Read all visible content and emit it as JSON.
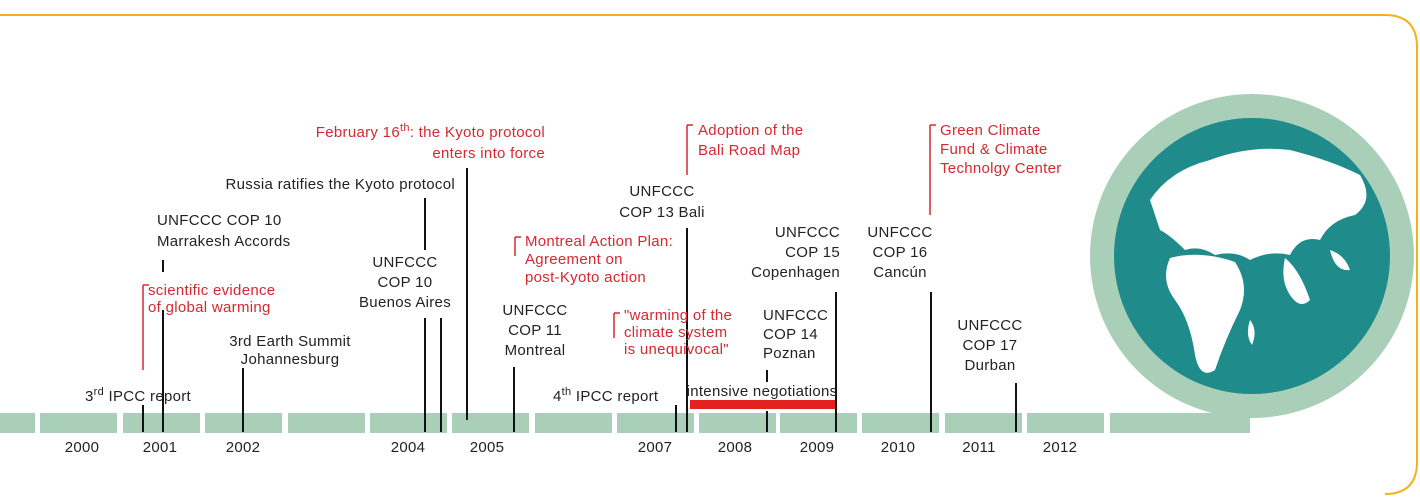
{
  "years": [
    "2000",
    "2001",
    "2002",
    "2004",
    "2005",
    "2007",
    "2008",
    "2009",
    "2010",
    "2011",
    "2012"
  ],
  "events": [
    {
      "lines": [
        [
          "3",
          "rd",
          " IPCC report"
        ]
      ],
      "color": "#222222"
    },
    {
      "lines": [
        "scientific evidence",
        "of global warming"
      ],
      "color": "#d7282f"
    },
    {
      "lines": [
        "UNFCCC COP 10",
        "Marrakesh Accords"
      ],
      "color": "#222222"
    },
    {
      "lines": [
        "3rd Earth Summit",
        "Johannesburg"
      ],
      "color": "#222222"
    },
    {
      "lines": [
        "Russia ratifies the Kyoto protocol"
      ],
      "color": "#222222"
    },
    {
      "lines": [
        "UNFCCC",
        "COP 10",
        "Buenos Aires"
      ],
      "color": "#222222"
    },
    {
      "lines": [
        [
          "February 16",
          "th",
          ": the Kyoto protocol"
        ],
        "enters into force"
      ],
      "color": "#d7282f"
    },
    {
      "lines": [
        "Montreal Action Plan:",
        "Agreement on",
        "post-Kyoto action"
      ],
      "color": "#d7282f"
    },
    {
      "lines": [
        "UNFCCC",
        "COP 11",
        "Montreal"
      ],
      "color": "#222222"
    },
    {
      "lines": [
        "UNFCCC",
        "COP 13 Bali"
      ],
      "color": "#222222"
    },
    {
      "lines": [
        "Adoption of the",
        "Bali Road Map"
      ],
      "color": "#d7282f"
    },
    {
      "lines": [
        "\"warming of the",
        "climate system",
        "is unequivocal\""
      ],
      "color": "#d7282f"
    },
    {
      "lines": [
        [
          "4",
          "th",
          " IPCC report"
        ]
      ],
      "color": "#222222"
    },
    {
      "lines": [
        "intensive negotiations"
      ],
      "color": "#222222"
    },
    {
      "lines": [
        "UNFCCC",
        "COP 14",
        "Poznan"
      ],
      "color": "#222222"
    },
    {
      "lines": [
        "UNFCCC",
        "COP 15",
        "Copenhagen"
      ],
      "color": "#222222"
    },
    {
      "lines": [
        "UNFCCC",
        "COP 16",
        "Cancún"
      ],
      "color": "#222222"
    },
    {
      "lines": [
        "Green Climate",
        "Fund & Climate",
        "Technolgy Center"
      ],
      "color": "#d7282f"
    },
    {
      "lines": [
        "UNFCCC",
        "COP 17",
        "Durban"
      ],
      "color": "#222222"
    }
  ]
}
